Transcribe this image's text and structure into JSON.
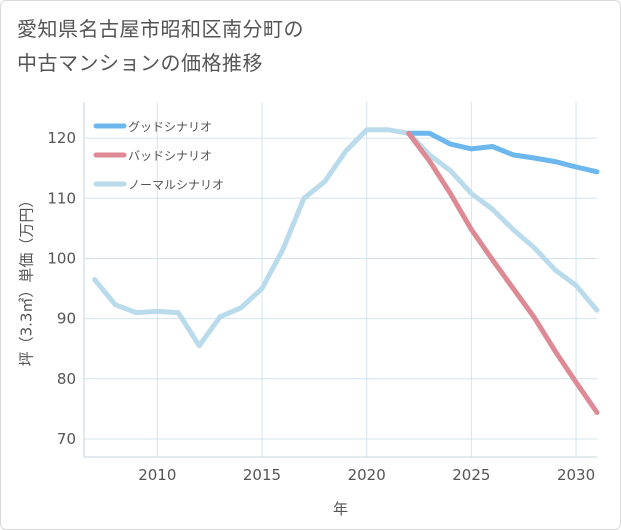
{
  "title": "愛知県名古屋市昭和区南分町の\n中古マンションの価格推移",
  "chart_data": {
    "type": "line",
    "xlabel": "年",
    "ylabel": "坪（3.3㎡）単価（万円）",
    "xlim": [
      2006.5,
      2031
    ],
    "ylim": [
      67,
      126
    ],
    "xticks": [
      2010,
      2015,
      2020,
      2025,
      2030
    ],
    "yticks": [
      70,
      80,
      90,
      100,
      110,
      120
    ],
    "grid": true,
    "legend_position": "top-left",
    "series": [
      {
        "name": "グッドシナリオ",
        "color": "#6cb8ee",
        "x": [
          2022,
          2023,
          2024,
          2025,
          2026,
          2027,
          2028,
          2029,
          2030,
          2031
        ],
        "y": [
          120.8,
          120.8,
          119.0,
          118.2,
          118.6,
          117.2,
          116.7,
          116.1,
          115.2,
          114.4
        ]
      },
      {
        "name": "バッドシナリオ",
        "color": "#dd8a94",
        "x": [
          2022,
          2023,
          2024,
          2025,
          2026,
          2027,
          2028,
          2029,
          2030,
          2031
        ],
        "y": [
          120.8,
          116.2,
          110.8,
          104.8,
          99.8,
          95.0,
          90.2,
          84.6,
          79.4,
          74.4
        ]
      },
      {
        "name": "ノーマルシナリオ",
        "color": "#b9dbeb",
        "x": [
          2007,
          2008,
          2009,
          2010,
          2011,
          2012,
          2013,
          2014,
          2015,
          2016,
          2017,
          2018,
          2019,
          2020,
          2021,
          2022,
          2023,
          2024,
          2025,
          2026,
          2027,
          2028,
          2029,
          2030,
          2031
        ],
        "y": [
          96.5,
          92.3,
          91.0,
          91.2,
          91.0,
          85.5,
          90.3,
          91.8,
          95.0,
          101.5,
          110.0,
          112.8,
          117.8,
          121.4,
          121.4,
          120.8,
          117.2,
          114.6,
          110.8,
          108.2,
          104.8,
          101.8,
          98.1,
          95.5,
          91.4
        ]
      }
    ]
  }
}
